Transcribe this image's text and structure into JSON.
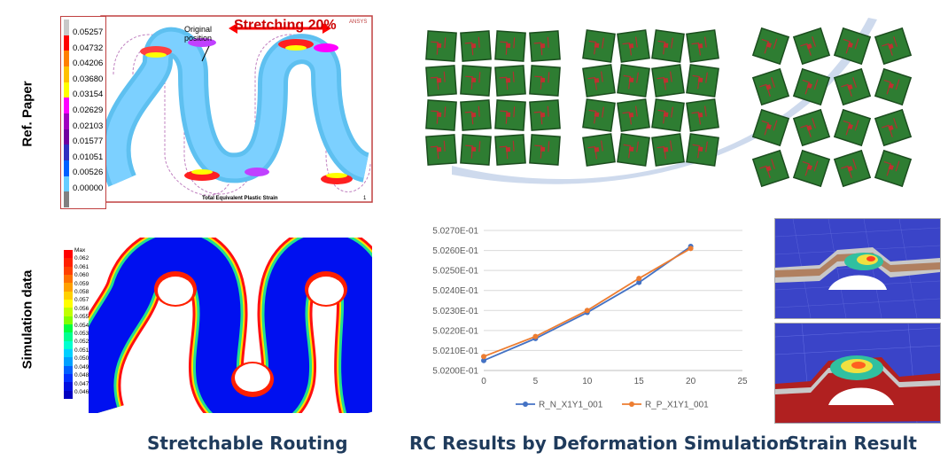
{
  "row_labels": {
    "top": "Ref. Paper",
    "bottom": "Simulation data"
  },
  "ref_paper": {
    "colorbar_values": [
      "0.05257",
      "0.04732",
      "0.04206",
      "0.03680",
      "0.03154",
      "0.02629",
      "0.02103",
      "0.01577",
      "0.01051",
      "0.00526",
      "0.00000"
    ],
    "colorbar_colors": [
      "#c8c8c8",
      "#ff0000",
      "#ff8000",
      "#ffc000",
      "#ffff00",
      "#ff00ff",
      "#a000c0",
      "#7000a0",
      "#3030c0",
      "#0060ff",
      "#66ccff",
      "#808080"
    ],
    "annotation": "Original\nposition",
    "stretch_label": "Stretching 20%",
    "logo": "ANSYS",
    "bottom_label": "Total Equivalent Plastic Strain",
    "page_num": "1"
  },
  "sim": {
    "colorbar_values": [
      "Max",
      "0.062",
      "0.061",
      "0.060",
      "0.059",
      "0.058",
      "0.057",
      "0.056",
      "0.055",
      "0.054",
      "0.053",
      "0.052",
      "0.051",
      "0.050",
      "0.049",
      "0.048",
      "0.047",
      "0.046"
    ],
    "colorbar_colors": [
      "#ff0000",
      "#ff2000",
      "#ff4000",
      "#ff7000",
      "#ffa000",
      "#ffd000",
      "#ffff00",
      "#c0ff00",
      "#80ff00",
      "#00ff40",
      "#00ff90",
      "#00ffd0",
      "#00d0ff",
      "#00a0ff",
      "#0060ff",
      "#0030ff",
      "#0010e0",
      "#0000c0"
    ]
  },
  "chart_data": {
    "type": "line",
    "x": [
      0,
      5,
      10,
      15,
      20
    ],
    "series": [
      {
        "name": "R_N_X1Y1_001",
        "values": [
          0.50205,
          0.50216,
          0.50229,
          0.50244,
          0.50262
        ],
        "color": "#4472c4"
      },
      {
        "name": "R_P_X1Y1_001",
        "values": [
          0.50207,
          0.50217,
          0.5023,
          0.50246,
          0.50261
        ],
        "color": "#ed7d31"
      }
    ],
    "ylim": [
      0.502,
      0.5027
    ],
    "xlim": [
      0,
      25
    ],
    "yticks": [
      "5.0200E-01",
      "5.0210E-01",
      "5.0220E-01",
      "5.0230E-01",
      "5.0240E-01",
      "5.0250E-01",
      "5.0260E-01",
      "5.0270E-01"
    ],
    "xticks": [
      "0",
      "5",
      "10",
      "15",
      "20",
      "25"
    ],
    "grid": true,
    "legend_position": "bottom"
  },
  "captions": {
    "routing": "Stretchable Routing",
    "rc": "RC Results by Deformation Simulation",
    "strain": "Strain Result"
  }
}
